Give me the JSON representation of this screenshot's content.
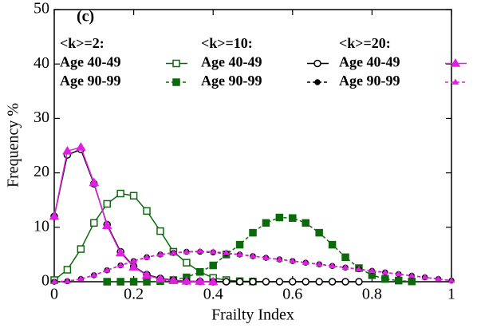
{
  "chart_data": {
    "type": "line",
    "panel_label": "(c)",
    "x_label": "Frailty Index",
    "y_label": "Frequency %",
    "xlim": [
      0,
      1
    ],
    "ylim": [
      0,
      50
    ],
    "xticks": [
      0,
      0.2,
      0.4,
      0.6,
      0.8,
      1
    ],
    "yticks": [
      0,
      10,
      20,
      30,
      40,
      50
    ],
    "legend_groups": [
      "<k>=2:",
      "<k>=10:",
      "<k>=20:"
    ],
    "series": [
      {
        "name": "Age 40-49",
        "group": 0,
        "color": "#0b6b0b",
        "marker": "square",
        "filled": false,
        "dashed": false,
        "x": [
          0,
          0.033,
          0.067,
          0.1,
          0.133,
          0.167,
          0.2,
          0.233,
          0.267,
          0.3,
          0.333,
          0.367,
          0.4,
          0.433,
          0.467,
          0.5
        ],
        "values": [
          0.3,
          2.2,
          6,
          10.8,
          14.3,
          16.2,
          15.8,
          13,
          9.3,
          5.5,
          3.5,
          1.8,
          0.7,
          0.3,
          0.1,
          0.05
        ]
      },
      {
        "name": "Age 90-99",
        "group": 0,
        "color": "#0b6b0b",
        "marker": "square",
        "filled": true,
        "dashed": true,
        "x": [
          0.133,
          0.167,
          0.2,
          0.233,
          0.267,
          0.3,
          0.333,
          0.367,
          0.4,
          0.433,
          0.467,
          0.5,
          0.533,
          0.567,
          0.6,
          0.633,
          0.667,
          0.7,
          0.733,
          0.767,
          0.8,
          0.833,
          0.867,
          0.9
        ],
        "values": [
          0,
          0,
          0,
          0,
          0.1,
          0.3,
          0.8,
          1.8,
          3,
          5,
          6.8,
          9,
          10.8,
          11.8,
          11.7,
          10.8,
          9,
          6.8,
          4.5,
          2.5,
          1.2,
          0.5,
          0.2,
          0.05
        ]
      },
      {
        "name": "Age 40-49",
        "group": 1,
        "color": "#000000",
        "marker": "circle",
        "filled": false,
        "dashed": false,
        "x": [
          0,
          0.033,
          0.067,
          0.1,
          0.133,
          0.167,
          0.2,
          0.233,
          0.267,
          0.3,
          0.333,
          0.367,
          0.4,
          0.433,
          0.467,
          0.5,
          0.533,
          0.567,
          0.6,
          0.633,
          0.667,
          0.7,
          0.733,
          0.767
        ],
        "values": [
          12,
          23.3,
          24.3,
          18,
          10.5,
          5.5,
          2.8,
          1.3,
          0.6,
          0.3,
          0.1,
          0.05,
          0,
          0,
          0,
          0,
          0,
          0,
          0,
          0,
          0,
          0,
          0,
          0
        ]
      },
      {
        "name": "Age 90-99",
        "group": 1,
        "color": "#000000",
        "marker": "circle",
        "filled": true,
        "dashed": true,
        "x": [
          0,
          0.033,
          0.067,
          0.1,
          0.133,
          0.167,
          0.2,
          0.233,
          0.267,
          0.3,
          0.333,
          0.367,
          0.4,
          0.433,
          0.467,
          0.5,
          0.533,
          0.567,
          0.6,
          0.633,
          0.667,
          0.7,
          0.733,
          0.767,
          0.8,
          0.833,
          0.867,
          0.9,
          0.933,
          0.967,
          1
        ],
        "values": [
          0,
          0.1,
          0.5,
          1.2,
          2.1,
          3,
          3.8,
          4.5,
          5,
          5.3,
          5.5,
          5.5,
          5.4,
          5.2,
          5,
          4.7,
          4.4,
          4.1,
          3.8,
          3.5,
          3.2,
          2.9,
          2.6,
          2.3,
          2,
          1.7,
          1.4,
          1.1,
          0.8,
          0.5,
          0.2
        ]
      },
      {
        "name": "Age 40-49",
        "group": 2,
        "color": "#e020e0",
        "marker": "triangle",
        "filled": true,
        "dashed": false,
        "x": [
          0,
          0.033,
          0.067,
          0.1,
          0.133,
          0.167,
          0.2,
          0.233,
          0.267,
          0.3,
          0.333,
          0.367,
          0.4
        ],
        "values": [
          12,
          24,
          24.7,
          18.2,
          10.3,
          5.3,
          2.7,
          1.2,
          0.5,
          0.2,
          0.1,
          0.05,
          0
        ]
      },
      {
        "name": "Age 90-99",
        "group": 2,
        "color": "#e020e0",
        "marker": "small-triangle",
        "filled": true,
        "dashed": true,
        "x": [
          0,
          0.033,
          0.067,
          0.1,
          0.133,
          0.167,
          0.2,
          0.233,
          0.267,
          0.3,
          0.333,
          0.367,
          0.4,
          0.433,
          0.467,
          0.5,
          0.533,
          0.567,
          0.6,
          0.633,
          0.667,
          0.7,
          0.733,
          0.767,
          0.8,
          0.833,
          0.867,
          0.9,
          0.933,
          0.967,
          1
        ],
        "values": [
          0,
          0.1,
          0.5,
          1.2,
          2.1,
          3,
          3.8,
          4.5,
          5,
          5.3,
          5.5,
          5.6,
          5.5,
          5.3,
          5,
          4.7,
          4.4,
          4.1,
          3.8,
          3.5,
          3.2,
          2.9,
          2.6,
          2.3,
          2,
          1.7,
          1.4,
          1.1,
          0.8,
          0.5,
          0.2
        ]
      }
    ]
  }
}
